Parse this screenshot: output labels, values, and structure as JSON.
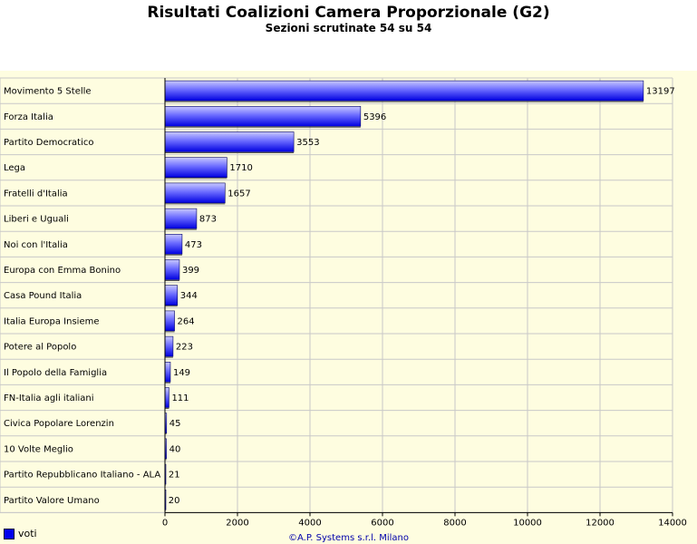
{
  "chart_data": {
    "type": "bar",
    "orientation": "horizontal",
    "title": "Risultati Coalizioni Camera Proporzionale (G2)",
    "subtitle": "Sezioni scrutinate 54 su 54",
    "categories": [
      "Movimento 5 Stelle",
      "Forza Italia",
      "Partito Democratico",
      "Lega",
      "Fratelli d'Italia",
      "Liberi e Uguali",
      "Noi con l'Italia",
      "Europa con Emma Bonino",
      "Casa Pound Italia",
      "Italia Europa Insieme",
      "Potere al Popolo",
      "Il Popolo della Famiglia",
      "FN-Italia agli italiani",
      "Civica Popolare Lorenzin",
      "10 Volte Meglio",
      "Partito Repubblicano Italiano - ALA",
      "Partito Valore Umano"
    ],
    "series": [
      {
        "name": "voti",
        "values": [
          13197,
          5396,
          3553,
          1710,
          1657,
          873,
          473,
          399,
          344,
          264,
          223,
          149,
          111,
          45,
          40,
          21,
          20
        ]
      }
    ],
    "xlim": [
      0,
      14000
    ],
    "xticks": [
      "0",
      "2000",
      "4000",
      "6000",
      "8000",
      "10000",
      "12000",
      "14000"
    ],
    "grid": true,
    "legend": "bottom-left",
    "colors": {
      "bar": "#0000ee",
      "background": "#fefde0",
      "grid": "#c8c8c8"
    }
  },
  "footer": "©A.P. Systems s.r.l. Milano"
}
